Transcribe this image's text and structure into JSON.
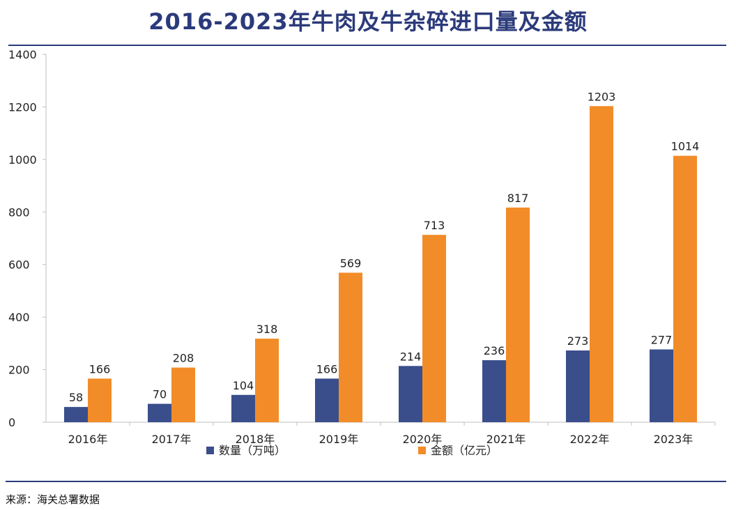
{
  "title": "2016-2023年牛肉及牛杂碎进口量及金额",
  "source": "来源：海关总署数据",
  "colors": {
    "title": "#2b3a7a",
    "volume": "#3a4e8c",
    "amount": "#f28c28"
  },
  "chart_data": {
    "type": "bar",
    "title": "2016-2023年牛肉及牛杂碎进口量及金额",
    "categories": [
      "2016年",
      "2017年",
      "2018年",
      "2019年",
      "2020年",
      "2021年",
      "2022年",
      "2023年"
    ],
    "series": [
      {
        "name": "数量（万吨）",
        "color": "#3a4e8c",
        "values": [
          58,
          70,
          104,
          166,
          214,
          236,
          273,
          277
        ]
      },
      {
        "name": "金额（亿元）",
        "color": "#f28c28",
        "values": [
          166,
          208,
          318,
          569,
          713,
          817,
          1203,
          1014
        ]
      }
    ],
    "ylim": [
      0,
      1400
    ],
    "yticks": [
      0,
      200,
      400,
      600,
      800,
      1000,
      1200,
      1400
    ],
    "grid": false,
    "legend": "bottom",
    "data_labels": true
  }
}
